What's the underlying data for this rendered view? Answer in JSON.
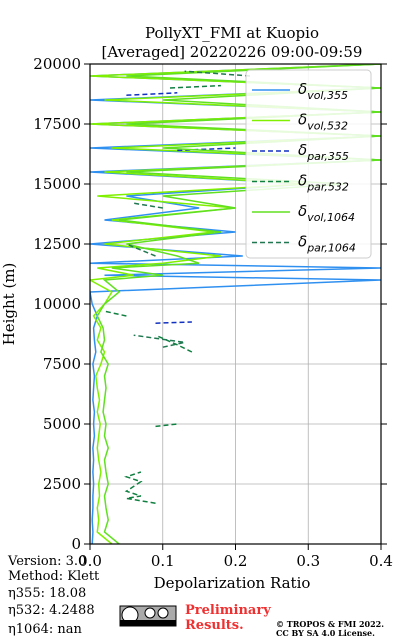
{
  "chart_data": {
    "type": "profile",
    "title": "PollyXT_FMI at Kuopio",
    "subtitle": "[Averaged] 20220226 09:00-09:59",
    "x_label": "Depolarization Ratio",
    "y_label": "Height (m)",
    "grid": true,
    "xlim": [
      0,
      0.4
    ],
    "ylim": [
      0,
      20000
    ],
    "xticks": [
      {
        "value": 0,
        "label": "0.0"
      },
      {
        "value": 0.1,
        "label": "0.1"
      },
      {
        "value": 0.2,
        "label": "0.2"
      },
      {
        "value": 0.3,
        "label": "0.3"
      },
      {
        "value": 0.4,
        "label": "0.4"
      }
    ],
    "yticks": [
      0,
      2500,
      5000,
      7500,
      10000,
      12500,
      15000,
      17500,
      20000
    ],
    "series": [
      {
        "name": "δvol,355",
        "color": "#3090f0",
        "dashed": false,
        "heights": [
          0,
          500,
          1000,
          1500,
          2000,
          2500,
          3000,
          3500,
          4000,
          4500,
          5000,
          5500,
          6000,
          6500,
          7000,
          7500,
          8000,
          8500,
          9000,
          9500,
          10000,
          10500,
          11000,
          11200,
          11500,
          11700,
          12000,
          12500,
          13000,
          13500,
          14000,
          14500,
          15000,
          15500,
          16000,
          16500,
          17000,
          17500,
          18000,
          18500,
          19000,
          19500,
          20000
        ],
        "values": [
          0.003,
          0.004,
          0.003,
          0.004,
          0.004,
          0.005,
          0.004,
          0.005,
          0.004,
          0.006,
          0.005,
          0.006,
          0.004,
          0.005,
          0.006,
          0.004,
          0.008,
          0.006,
          0.005,
          0.01,
          0.003,
          0.0,
          0.4,
          0.02,
          0.4,
          0.0,
          0.21,
          0.0,
          0.2,
          0.02,
          0.15,
          0.05,
          0.3,
          0.0,
          0.4,
          0.0,
          0.4,
          0.0,
          0.4,
          0.0,
          0.4,
          0.0,
          0.4
        ]
      },
      {
        "name": "δvol,532",
        "color": "#80f000",
        "dashed": false,
        "heights": [
          0,
          500,
          1000,
          1500,
          2000,
          2500,
          3000,
          3500,
          4000,
          4500,
          5000,
          5500,
          6000,
          6500,
          7000,
          7500,
          8000,
          8500,
          9000,
          9500,
          10000,
          10500,
          11000,
          11200,
          11500,
          11700,
          12000,
          12500,
          13000,
          13500,
          14000,
          14500,
          15000,
          15500,
          16000,
          16500,
          17000,
          17500,
          18000,
          18500,
          19000,
          19500,
          20000
        ],
        "values": [
          0.03,
          0.01,
          0.012,
          0.01,
          0.013,
          0.012,
          0.015,
          0.012,
          0.01,
          0.012,
          0.014,
          0.01,
          0.013,
          0.01,
          0.008,
          0.015,
          0.02,
          0.01,
          0.015,
          0.005,
          0.02,
          0.03,
          0.0,
          0.06,
          0.01,
          0.1,
          0.18,
          0.02,
          0.17,
          0.03,
          0.2,
          0.01,
          0.3,
          0.02,
          0.4,
          0.03,
          0.4,
          0.0,
          0.4,
          0.02,
          0.4,
          0.0,
          0.4
        ]
      },
      {
        "name": "δpar,355",
        "color": "#1030c0",
        "dashed": true,
        "heights": [
          9200,
          9250,
          null,
          16400,
          16500,
          null,
          18700,
          18800
        ],
        "values": [
          0.09,
          0.14,
          null,
          0.12,
          0.2,
          null,
          0.05,
          0.12
        ]
      },
      {
        "name": "δpar,532",
        "color": "#108040",
        "dashed": true,
        "heights": [
          1700,
          1900,
          2000,
          2200,
          2400,
          2600,
          2800,
          3000,
          null,
          4500,
          null,
          4900,
          5000,
          null,
          8000,
          8300,
          8700,
          null,
          9500,
          9700,
          null,
          19000,
          19100
        ],
        "values": [
          0.09,
          0.05,
          0.07,
          0.05,
          0.06,
          0.07,
          0.05,
          0.07,
          null,
          0.06,
          null,
          0.09,
          0.12,
          null,
          0.14,
          0.12,
          0.09,
          null,
          0.05,
          0.02,
          null,
          0.11,
          0.18
        ]
      },
      {
        "name": "δvol,1064",
        "color": "#60e020",
        "dashed": false,
        "heights": [
          0,
          500,
          1000,
          1500,
          2000,
          2500,
          3000,
          3500,
          4000,
          4500,
          5000,
          5500,
          6000,
          6500,
          7000,
          7500,
          8000,
          8500,
          9000,
          9500,
          10000,
          10500,
          11000,
          11200,
          11500,
          11700,
          12000,
          12500,
          13000,
          13500,
          14000,
          14500,
          15000,
          15500,
          16000,
          16500,
          17000,
          17500,
          18000,
          18500,
          19000,
          19500,
          20000
        ],
        "values": [
          0.04,
          0.02,
          0.025,
          0.022,
          0.02,
          0.025,
          0.022,
          0.02,
          0.025,
          0.02,
          0.022,
          0.018,
          0.02,
          0.022,
          0.02,
          0.025,
          0.015,
          0.02,
          0.018,
          0.01,
          0.02,
          0.04,
          0.02,
          0.1,
          0.03,
          0.15,
          0.12,
          0.05,
          0.18,
          0.04,
          0.2,
          0.1,
          0.35,
          0.05,
          0.4,
          0.1,
          0.4,
          0.05,
          0.4,
          0.1,
          0.4,
          0.05,
          0.4
        ]
      },
      {
        "name": "δpar,1064",
        "color": "#207850",
        "dashed": true,
        "heights": [
          8200,
          8400,
          8700,
          null,
          12000,
          12500,
          null,
          14000,
          14200,
          null,
          19500,
          19700
        ],
        "values": [
          0.1,
          0.13,
          0.06,
          null,
          0.09,
          0.05,
          null,
          0.1,
          0.06,
          null,
          0.22,
          0.13
        ]
      }
    ]
  },
  "footer": {
    "version": "Version: 3.0",
    "method": "Method: Klett",
    "eta355": "η355:  18.08",
    "eta532": "η532: 4.2488",
    "eta1064": "η1064:    nan",
    "preliminary": [
      "Preliminary",
      "Results."
    ],
    "license": [
      "© TROPOS & FMI 2022.",
      "CC BY SA 4.0 License."
    ]
  }
}
